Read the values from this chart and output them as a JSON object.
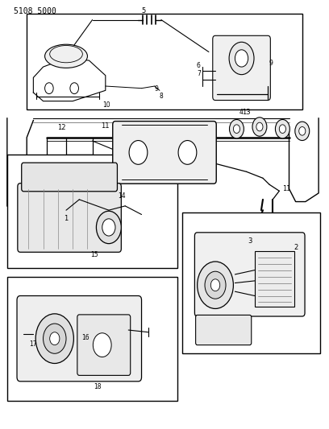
{
  "title": "5108 5000",
  "bg_color": "#ffffff",
  "line_color": "#000000",
  "figsize": [
    4.08,
    5.33
  ],
  "dpi": 100
}
